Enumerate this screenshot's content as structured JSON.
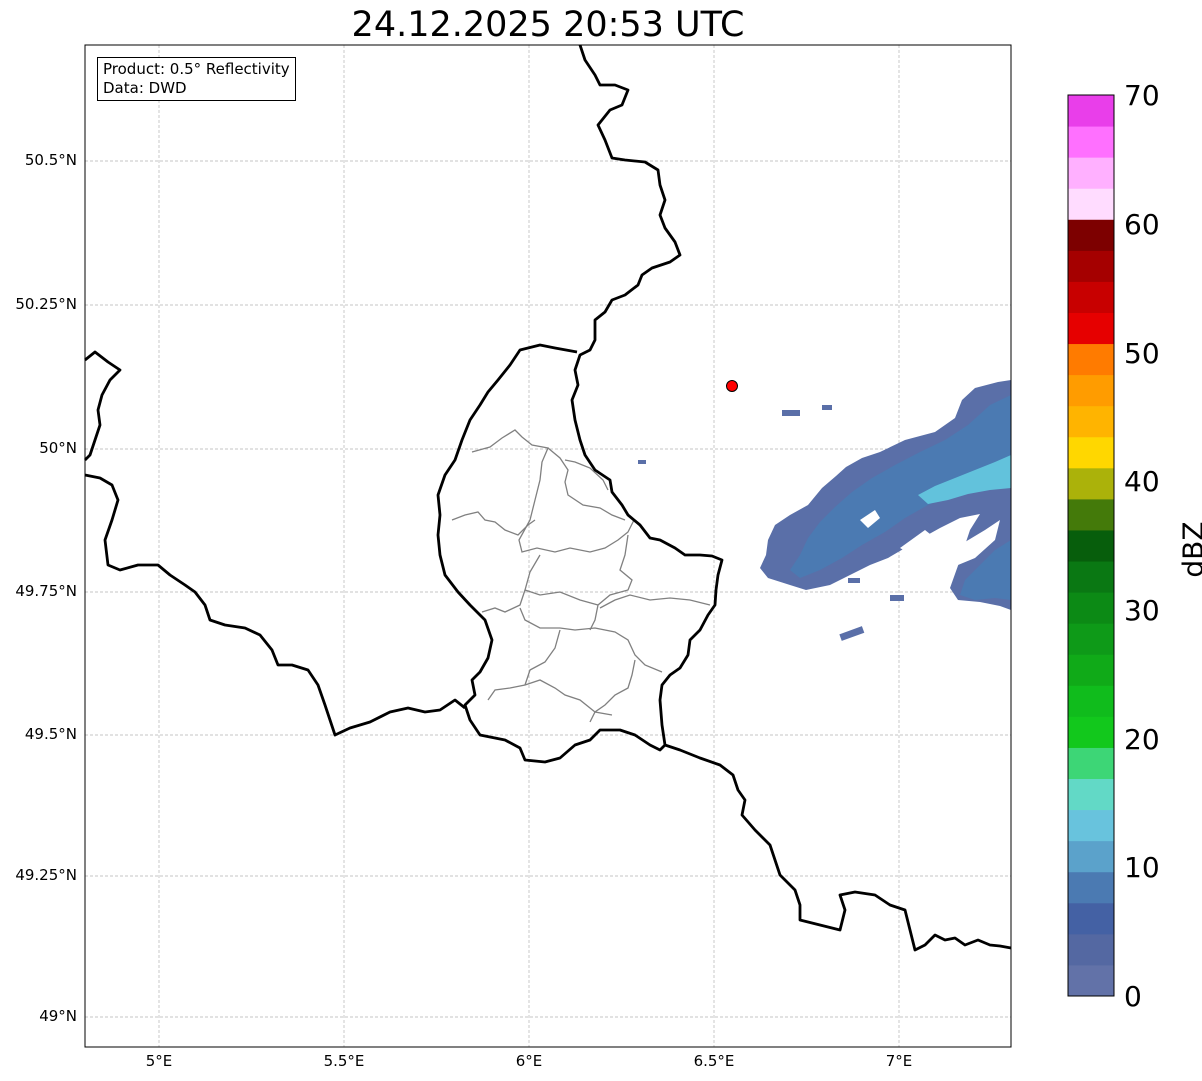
{
  "title": "24.12.2025 20:53 UTC",
  "info": {
    "product": "Product: 0.5° Reflectivity",
    "source": "Data: DWD"
  },
  "axes": {
    "lon_ticks": [
      "5°E",
      "5.5°E",
      "6°E",
      "6.5°E",
      "7°E"
    ],
    "lat_ticks": [
      "50.5°N",
      "50.25°N",
      "50°N",
      "49.75°N",
      "49.5°N",
      "49.25°N",
      "49°N"
    ],
    "lon_range": [
      4.8,
      7.3
    ],
    "lat_range": [
      48.95,
      50.7
    ]
  },
  "colorbar": {
    "label": "dBZ",
    "ticks": [
      "0",
      "10",
      "20",
      "30",
      "40",
      "50",
      "60",
      "70"
    ],
    "range": [
      0,
      70
    ],
    "colors": [
      "#6272a8",
      "#5468a2",
      "#4461a4",
      "#4b7ab2",
      "#5ba2cb",
      "#68c3dd",
      "#62d9c6",
      "#3dd676",
      "#12c81c",
      "#10bc1c",
      "#10aa18",
      "#0e9a18",
      "#0c8a15",
      "#0a7813",
      "#075e0c",
      "#447a0a",
      "#abb20a",
      "#ffd700",
      "#ffb400",
      "#ff9c00",
      "#ff7b00",
      "#e60000",
      "#c80000",
      "#a50000",
      "#7d0000",
      "#ffdcff",
      "#ffb0ff",
      "#ff70ff",
      "#e93eea"
    ]
  },
  "marker": {
    "name": "radar-site",
    "lon": 6.55,
    "lat": 50.11,
    "color": "#ff0000"
  },
  "colors": {
    "border": "#000000",
    "admin": "#808080",
    "grid": "#b4b4b4",
    "echo_weak": "#5a6fa8",
    "echo_mid": "#4b7ab2",
    "echo_strong": "#62c2dc"
  }
}
